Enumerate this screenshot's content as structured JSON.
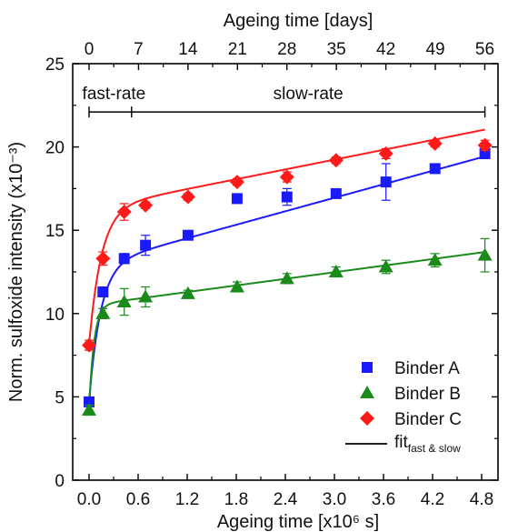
{
  "chart_data": {
    "type": "scatter",
    "xlabel": "Ageing time [x10⁶ s]",
    "ylabel": "Norm. sulfoxide intensity (x10⁻³)",
    "x2label": "Ageing time [days]",
    "xlim": [
      -0.2,
      5.0
    ],
    "ylim": [
      0,
      25
    ],
    "x_ticks": [
      0.0,
      0.6,
      1.2,
      1.8,
      2.4,
      3.0,
      3.6,
      4.2,
      4.8
    ],
    "x_tick_labels": [
      "0.0",
      "0.6",
      "1.2",
      "1.8",
      "2.4",
      "3.0",
      "3.6",
      "4.2",
      "4.8"
    ],
    "y_ticks": [
      0,
      5,
      10,
      15,
      20,
      25
    ],
    "y_tick_labels": [
      "0",
      "5",
      "10",
      "15",
      "20",
      "25"
    ],
    "x2_ticks_days": [
      0,
      7,
      14,
      21,
      28,
      35,
      42,
      49,
      56
    ],
    "x2_tick_labels": [
      "0",
      "7",
      "14",
      "21",
      "28",
      "35",
      "42",
      "49",
      "56"
    ],
    "grid": false,
    "legend_position": "bottom-right",
    "annotations": {
      "fast_label": "fast-rate",
      "slow_label": "slow-rate",
      "bracket_x": [
        0.0,
        0.52,
        4.84
      ],
      "bracket_y": 22.1
    },
    "series": [
      {
        "name": "Binder A",
        "marker": "square",
        "color": "#1a1aff",
        "x": [
          0.0,
          0.17,
          0.43,
          0.69,
          1.21,
          1.81,
          2.42,
          3.02,
          3.63,
          4.23,
          4.84
        ],
        "y": [
          4.7,
          11.3,
          13.3,
          14.1,
          14.7,
          16.9,
          17.0,
          17.2,
          17.9,
          18.7,
          19.6
        ],
        "yerr": [
          0.2,
          0.2,
          0.3,
          0.6,
          0.2,
          0.2,
          0.5,
          0.2,
          1.1,
          0.2,
          0.3
        ]
      },
      {
        "name": "Binder B",
        "marker": "triangle",
        "color": "#1a8a1a",
        "x": [
          0.0,
          0.17,
          0.43,
          0.69,
          1.21,
          1.81,
          2.42,
          3.02,
          3.63,
          4.23,
          4.84
        ],
        "y": [
          4.2,
          10.0,
          10.7,
          11.0,
          11.2,
          11.6,
          12.1,
          12.5,
          12.8,
          13.2,
          13.5
        ],
        "yerr": [
          0.3,
          0.3,
          0.8,
          0.6,
          0.2,
          0.3,
          0.3,
          0.3,
          0.4,
          0.4,
          1.0
        ]
      },
      {
        "name": "Binder C",
        "marker": "diamond",
        "color": "#ff1a1a",
        "x": [
          0.0,
          0.17,
          0.43,
          0.69,
          1.21,
          1.81,
          2.42,
          3.02,
          3.63,
          4.23,
          4.84
        ],
        "y": [
          8.1,
          13.3,
          16.1,
          16.5,
          17.0,
          17.9,
          18.2,
          19.2,
          19.6,
          20.2,
          20.1
        ],
        "yerr": [
          0.3,
          0.4,
          0.5,
          0.2,
          0.2,
          0.2,
          0.3,
          0.2,
          0.3,
          0.2,
          0.3
        ]
      }
    ],
    "fits": [
      {
        "series": "Binder A",
        "color": "#1a1aff",
        "y0": 4.7,
        "a": 8.2,
        "tau": 0.14,
        "k": 1.35
      },
      {
        "series": "Binder B",
        "color": "#1a8a1a",
        "y0": 4.2,
        "a": 6.3,
        "tau": 0.06,
        "k": 0.66
      },
      {
        "series": "Binder C",
        "color": "#ff1a1a",
        "y0": 8.1,
        "a": 8.2,
        "tau": 0.15,
        "k": 0.98
      }
    ],
    "fit_legend": {
      "label": "fit",
      "subscript": "fast & slow",
      "color": "#000000"
    }
  }
}
